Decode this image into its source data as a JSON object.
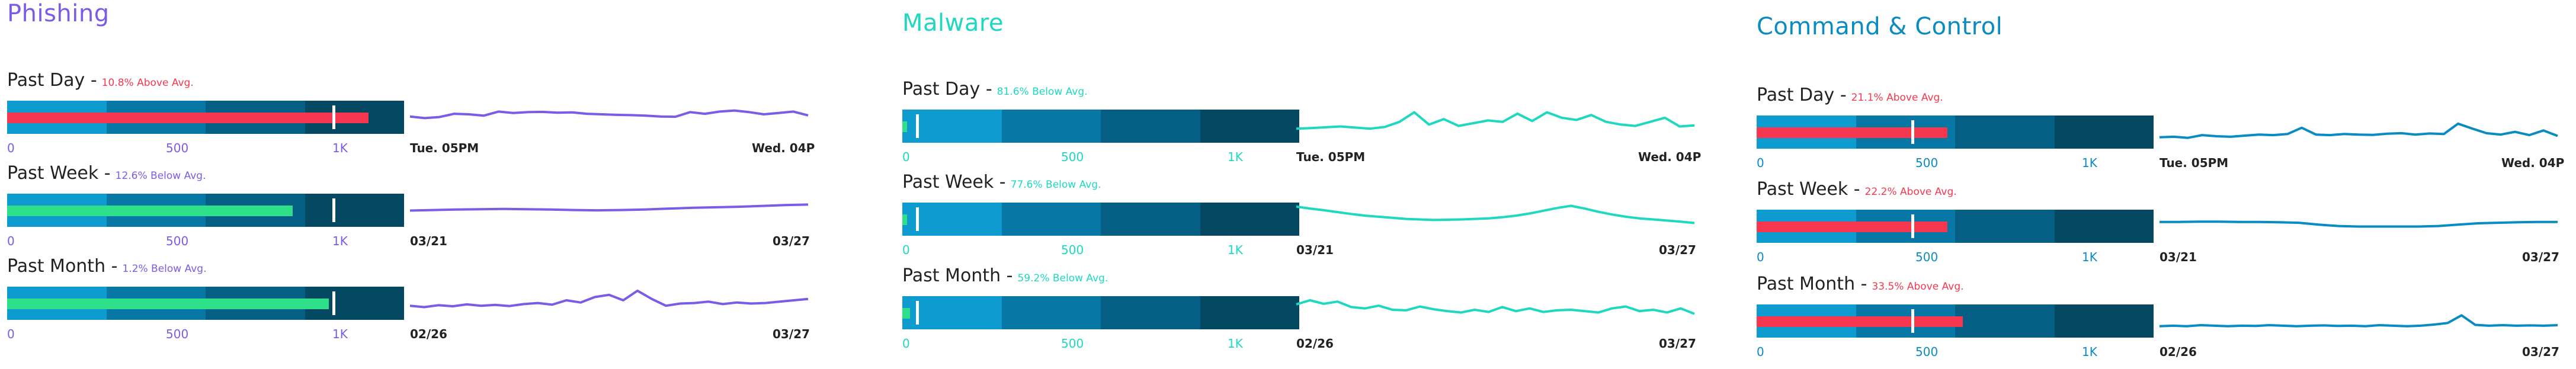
{
  "colors": {
    "bands": [
      "#0d9bd0",
      "#0778a6",
      "#055f84",
      "#044862"
    ],
    "above": "#f7374f",
    "below": "#2ee08a"
  },
  "panels": [
    {
      "title": "Phishing",
      "color": "#7b5ce6",
      "axis": [
        "0",
        "500",
        "1K"
      ],
      "rows": [
        {
          "period": "Past Day",
          "sep": " -",
          "delta": "10.8% Above Avg.",
          "status": "above",
          "value": 0.91,
          "marker": 0.82,
          "start": "Tue. 05PM",
          "end": "Wed. 04P",
          "series": [
            0.42,
            0.36,
            0.4,
            0.52,
            0.5,
            0.45,
            0.6,
            0.55,
            0.58,
            0.59,
            0.56,
            0.57,
            0.52,
            0.5,
            0.48,
            0.47,
            0.45,
            0.42,
            0.41,
            0.58,
            0.52,
            0.6,
            0.64,
            0.58,
            0.5,
            0.55,
            0.6,
            0.46
          ]
        },
        {
          "period": "Past Week",
          "sep": " -",
          "delta": "12.6% Below Avg.",
          "status": "below",
          "value": 0.72,
          "marker": 0.82,
          "start": "03/21",
          "end": "03/27",
          "series": [
            0.38,
            0.4,
            0.42,
            0.43,
            0.44,
            0.43,
            0.42,
            0.4,
            0.39,
            0.4,
            0.42,
            0.45,
            0.48,
            0.5,
            0.52,
            0.55,
            0.58,
            0.6
          ]
        },
        {
          "period": "Past Month",
          "sep": " -",
          "delta": "1.2% Below Avg.",
          "status": "below",
          "value": 0.81,
          "marker": 0.82,
          "start": "02/26",
          "end": "03/27",
          "series": [
            0.3,
            0.25,
            0.32,
            0.28,
            0.35,
            0.3,
            0.33,
            0.29,
            0.36,
            0.4,
            0.34,
            0.5,
            0.42,
            0.62,
            0.7,
            0.5,
            0.85,
            0.55,
            0.3,
            0.38,
            0.4,
            0.45,
            0.36,
            0.42,
            0.38,
            0.4,
            0.45,
            0.5,
            0.55
          ]
        }
      ]
    },
    {
      "title": "Malware",
      "color": "#1ed9c0",
      "axis": [
        "0",
        "500",
        "1K"
      ],
      "rows": [
        {
          "period": "Past Day",
          "sep": " -",
          "delta": "81.6% Below Avg.",
          "status": "below",
          "value": 0.012,
          "marker": 0.035,
          "start": "Tue. 05PM",
          "end": "Wed. 04P",
          "series": [
            0.3,
            0.32,
            0.35,
            0.38,
            0.34,
            0.3,
            0.36,
            0.55,
            0.9,
            0.45,
            0.65,
            0.4,
            0.5,
            0.6,
            0.55,
            0.85,
            0.58,
            0.9,
            0.7,
            0.62,
            0.8,
            0.55,
            0.45,
            0.4,
            0.55,
            0.7,
            0.38,
            0.42
          ]
        },
        {
          "period": "Past Week",
          "sep": " -",
          "delta": "77.6% Below Avg.",
          "status": "below",
          "value": 0.01,
          "marker": 0.035,
          "start": "03/21",
          "end": "03/27",
          "series": [
            0.85,
            0.78,
            0.72,
            0.65,
            0.58,
            0.52,
            0.48,
            0.44,
            0.4,
            0.38,
            0.36,
            0.37,
            0.38,
            0.4,
            0.42,
            0.46,
            0.52,
            0.6,
            0.7,
            0.8,
            0.88,
            0.78,
            0.66,
            0.56,
            0.48,
            0.42,
            0.38,
            0.34,
            0.3,
            0.25
          ]
        },
        {
          "period": "Past Month",
          "sep": " -",
          "delta": "59.2% Below Avg.",
          "status": "below",
          "value": 0.02,
          "marker": 0.035,
          "start": "02/26",
          "end": "03/27",
          "series": [
            0.7,
            0.85,
            0.72,
            0.8,
            0.6,
            0.55,
            0.65,
            0.5,
            0.48,
            0.62,
            0.52,
            0.45,
            0.4,
            0.5,
            0.42,
            0.6,
            0.45,
            0.55,
            0.42,
            0.48,
            0.5,
            0.45,
            0.4,
            0.55,
            0.62,
            0.45,
            0.5,
            0.4,
            0.55,
            0.35
          ]
        }
      ]
    },
    {
      "title": "Command & Control",
      "color": "#0a8bc2",
      "axis": [
        "0",
        "500",
        "1K"
      ],
      "rows": [
        {
          "period": "Past Day",
          "sep": " -",
          "delta": "21.1% Above Avg.",
          "status": "above",
          "value": 0.48,
          "marker": 0.39,
          "start": "Tue. 05PM",
          "end": "Wed. 04P",
          "series": [
            0.2,
            0.22,
            0.18,
            0.28,
            0.24,
            0.22,
            0.26,
            0.3,
            0.28,
            0.32,
            0.55,
            0.3,
            0.28,
            0.32,
            0.3,
            0.29,
            0.33,
            0.35,
            0.3,
            0.34,
            0.32,
            0.7,
            0.52,
            0.35,
            0.3,
            0.4,
            0.28,
            0.45,
            0.25
          ]
        },
        {
          "period": "Past Week",
          "sep": " -",
          "delta": "22.2% Above Avg.",
          "status": "above",
          "value": 0.48,
          "marker": 0.39,
          "start": "03/21",
          "end": "03/27",
          "series": [
            0.55,
            0.55,
            0.56,
            0.56,
            0.55,
            0.55,
            0.54,
            0.52,
            0.45,
            0.4,
            0.38,
            0.38,
            0.38,
            0.38,
            0.4,
            0.45,
            0.5,
            0.52,
            0.54,
            0.55,
            0.55
          ]
        },
        {
          "period": "Past Month",
          "sep": " -",
          "delta": "33.5% Above Avg.",
          "status": "above",
          "value": 0.52,
          "marker": 0.39,
          "start": "02/26",
          "end": "03/27",
          "series": [
            0.2,
            0.22,
            0.2,
            0.24,
            0.22,
            0.2,
            0.22,
            0.21,
            0.24,
            0.22,
            0.2,
            0.22,
            0.23,
            0.21,
            0.22,
            0.2,
            0.24,
            0.22,
            0.2,
            0.22,
            0.26,
            0.32,
            0.6,
            0.25,
            0.22,
            0.24,
            0.22,
            0.23,
            0.22,
            0.24
          ]
        }
      ]
    }
  ]
}
